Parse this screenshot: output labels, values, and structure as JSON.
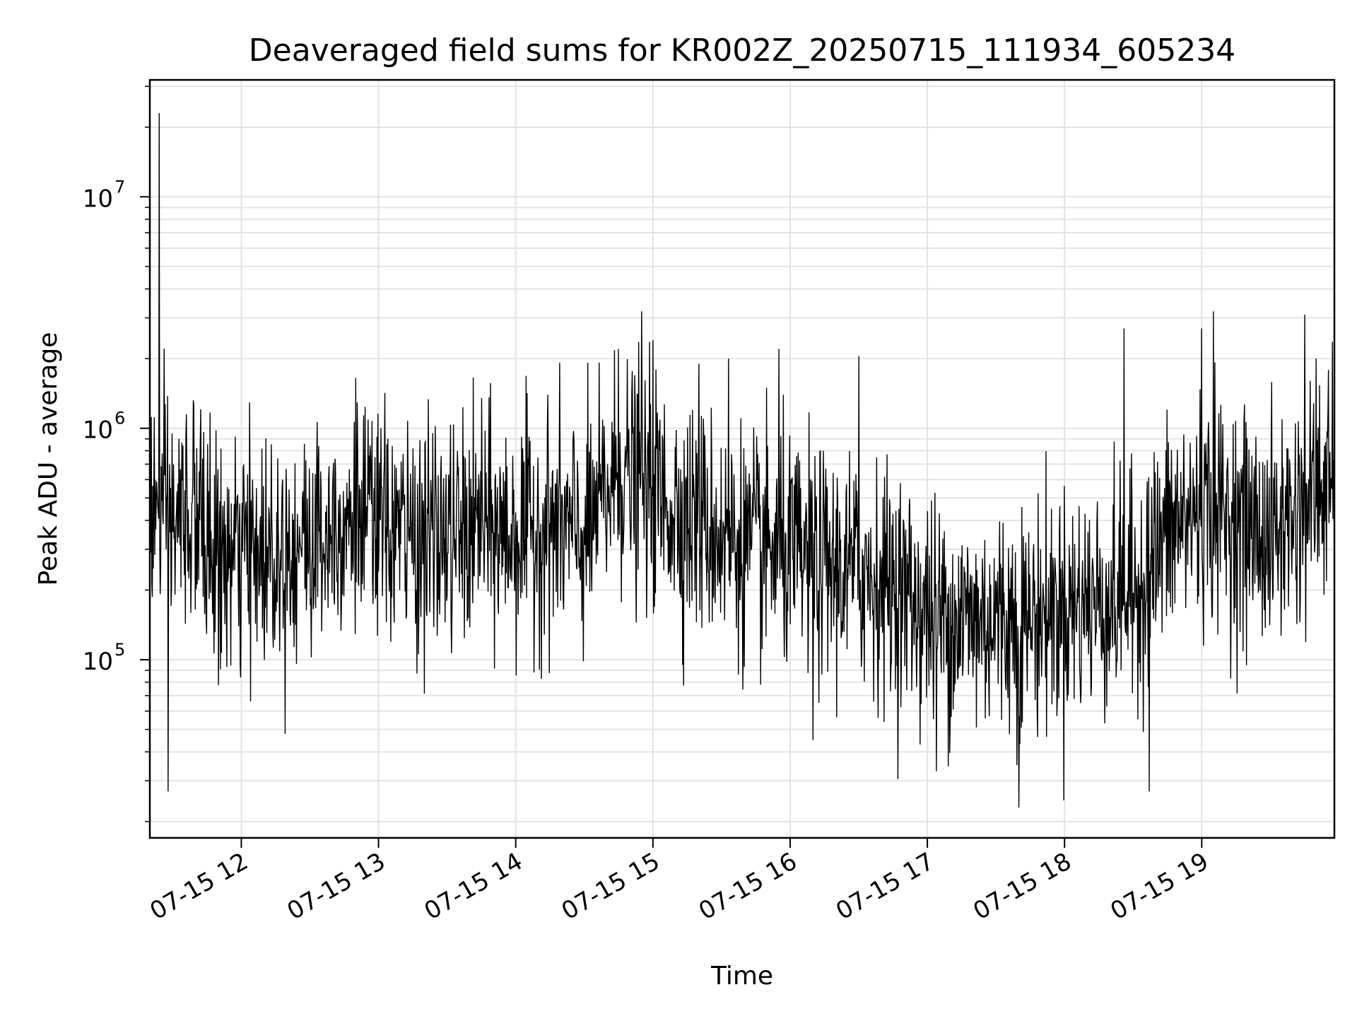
{
  "chart_data": {
    "type": "line",
    "title": "Deaveraged field sums for KR002Z_20250715_111934_605234",
    "xlabel": "Time",
    "ylabel": "Peak ADU - average",
    "yscale": "log",
    "grid": true,
    "x_range": [
      "2025-07-15T11:20",
      "2025-07-15T19:58"
    ],
    "ylim": [
      17000,
      32000000
    ],
    "x_ticks": [
      "07-15 12",
      "07-15 13",
      "07-15 14",
      "07-15 15",
      "07-15 16",
      "07-15 17",
      "07-15 18",
      "07-15 19"
    ],
    "y_ticks": [
      {
        "base": "10",
        "exp": "5"
      },
      {
        "base": "10",
        "exp": "6"
      },
      {
        "base": "10",
        "exp": "7"
      }
    ],
    "series_color": "#000000",
    "x": [
      "2025-07-15T11:20",
      "2025-07-15T11:30",
      "2025-07-15T11:40",
      "2025-07-15T11:50",
      "2025-07-15T12:00",
      "2025-07-15T12:15",
      "2025-07-15T12:30",
      "2025-07-15T12:45",
      "2025-07-15T13:00",
      "2025-07-15T13:15",
      "2025-07-15T13:30",
      "2025-07-15T13:45",
      "2025-07-15T14:00",
      "2025-07-15T14:15",
      "2025-07-15T14:30",
      "2025-07-15T14:45",
      "2025-07-15T15:00",
      "2025-07-15T15:15",
      "2025-07-15T15:30",
      "2025-07-15T15:45",
      "2025-07-15T16:00",
      "2025-07-15T16:15",
      "2025-07-15T16:30",
      "2025-07-15T16:45",
      "2025-07-15T17:00",
      "2025-07-15T17:15",
      "2025-07-15T17:30",
      "2025-07-15T17:45",
      "2025-07-15T18:00",
      "2025-07-15T18:15",
      "2025-07-15T18:30",
      "2025-07-15T18:45",
      "2025-07-15T19:00",
      "2025-07-15T19:15",
      "2025-07-15T19:30",
      "2025-07-15T19:45",
      "2025-07-15T19:58"
    ],
    "values": [
      450000,
      380000,
      420000,
      260000,
      280000,
      300000,
      320000,
      420000,
      380000,
      340000,
      330000,
      360000,
      350000,
      380000,
      330000,
      650000,
      520000,
      420000,
      350000,
      300000,
      280000,
      250000,
      240000,
      210000,
      160000,
      150000,
      150000,
      150000,
      170000,
      180000,
      190000,
      350000,
      450000,
      400000,
      330000,
      480000,
      580000
    ],
    "noise_decades": 0.45,
    "spikes": [
      {
        "x": "2025-07-15T11:24",
        "y": 23000000
      },
      {
        "x": "2025-07-15T11:28",
        "y": 27000
      },
      {
        "x": "2025-07-15T11:36",
        "y": 1150000
      },
      {
        "x": "2025-07-15T12:50",
        "y": 1650000
      },
      {
        "x": "2025-07-15T13:45",
        "y": 1350000
      },
      {
        "x": "2025-07-15T14:45",
        "y": 2200000
      },
      {
        "x": "2025-07-15T14:55",
        "y": 3200000
      },
      {
        "x": "2025-07-15T15:00",
        "y": 2400000
      },
      {
        "x": "2025-07-15T15:20",
        "y": 1900000
      },
      {
        "x": "2025-07-15T15:33",
        "y": 2000000
      },
      {
        "x": "2025-07-15T15:55",
        "y": 2200000
      },
      {
        "x": "2025-07-15T16:10",
        "y": 45000
      },
      {
        "x": "2025-07-15T16:30",
        "y": 2050000
      },
      {
        "x": "2025-07-15T17:04",
        "y": 33000
      },
      {
        "x": "2025-07-15T17:40",
        "y": 23000
      },
      {
        "x": "2025-07-15T18:26",
        "y": 2700000
      },
      {
        "x": "2025-07-15T18:37",
        "y": 27000
      },
      {
        "x": "2025-07-15T19:00",
        "y": 2700000
      },
      {
        "x": "2025-07-15T19:05",
        "y": 3200000
      },
      {
        "x": "2025-07-15T19:45",
        "y": 3100000
      },
      {
        "x": "2025-07-15T19:50",
        "y": 2000000
      }
    ]
  }
}
